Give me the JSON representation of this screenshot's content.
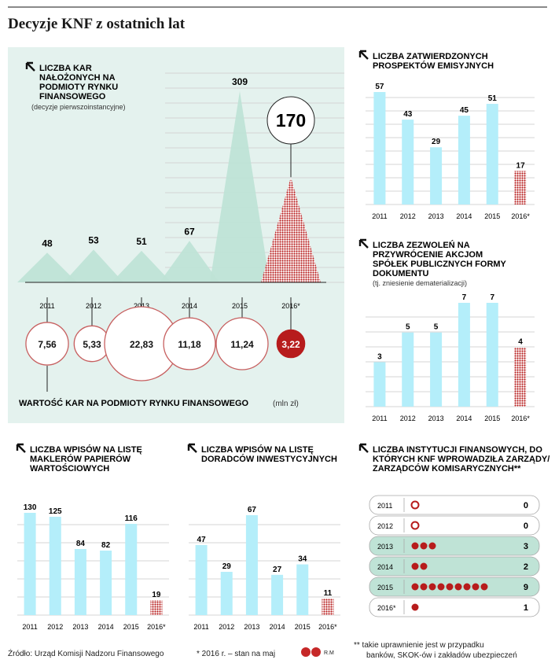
{
  "title": "Decyzje KNF z ostatnich lat",
  "colors": {
    "teal": "#bfe3d6",
    "cyan": "#b4eefa",
    "red": "#b71c1c",
    "panel": "#e4f2ee"
  },
  "chart_data": [
    {
      "id": "kary",
      "type": "area",
      "title": "LICZBA KAR NAŁOŻONYCH NA PODMIOTY RYNKU FINANSOWEGO",
      "subtitle": "(decyzje pierwszoinstancyjne)",
      "categories": [
        "2011",
        "2012",
        "2013",
        "2014",
        "2015",
        "2016*"
      ],
      "values": [
        48,
        53,
        51,
        67,
        309,
        170
      ],
      "value_labels": [
        "48",
        "53",
        "51",
        "67",
        "309",
        "170"
      ]
    },
    {
      "id": "wartosc",
      "type": "scatter",
      "title": "WARTOŚĆ KAR NA PODMIOTY RYNKU FINANSOWEGO",
      "unit": "(mln zł)",
      "categories": [
        "2011",
        "2012",
        "2013",
        "2014",
        "2015",
        "2016*"
      ],
      "values": [
        7.56,
        5.33,
        22.83,
        11.18,
        11.24,
        3.22
      ],
      "value_labels": [
        "7,56",
        "5,33",
        "22,83",
        "11,18",
        "11,24",
        "3,22"
      ]
    },
    {
      "id": "prospekty",
      "type": "bar",
      "title": "LICZBA ZATWIERDZONYCH PROSPEKTÓW EMISYJNYCH",
      "categories": [
        "2011",
        "2012",
        "2013",
        "2014",
        "2015",
        "2016*"
      ],
      "values": [
        57,
        43,
        29,
        45,
        51,
        17
      ],
      "value_labels": [
        "57",
        "43",
        "29",
        "45",
        "51",
        "17"
      ]
    },
    {
      "id": "zezwolenia",
      "type": "bar",
      "title": "LICZBA ZEZWOLEŃ NA PRZYWRÓCENIE AKCJOM SPÓŁEK PUBLICZNYCH FORMY DOKUMENTU",
      "subtitle": "(tj. zniesienie dematerializacji)",
      "categories": [
        "2011",
        "2012",
        "2013",
        "2014",
        "2015",
        "2016*"
      ],
      "values": [
        3,
        5,
        5,
        7,
        7,
        4
      ],
      "value_labels": [
        "3",
        "5",
        "5",
        "7",
        "7",
        "4"
      ]
    },
    {
      "id": "maklerzy",
      "type": "bar",
      "title": "LICZBA WPISÓW NA LISTĘ MAKLERÓW PAPIERÓW WARTOŚCIOWYCH",
      "categories": [
        "2011",
        "2012",
        "2013",
        "2014",
        "2015",
        "2016*"
      ],
      "values": [
        130,
        125,
        84,
        82,
        116,
        19
      ],
      "value_labels": [
        "130",
        "125",
        "84",
        "82",
        "116",
        "19"
      ]
    },
    {
      "id": "doradcy",
      "type": "bar",
      "title": "LICZBA WPISÓW NA LISTĘ DORADCÓW INWESTYCYJNYCH",
      "categories": [
        "2011",
        "2012",
        "2013",
        "2014",
        "2015",
        "2016*"
      ],
      "values": [
        47,
        29,
        67,
        27,
        34,
        11
      ],
      "value_labels": [
        "47",
        "29",
        "67",
        "27",
        "34",
        "11"
      ]
    },
    {
      "id": "zarzady",
      "type": "table",
      "title": "LICZBA INSTYTUCJI FINANSOWYCH, DO KTÓRYCH KNF WPROWADZIŁA ZARZĄDY/ ZARZĄDCÓW KOMISARYCZNYCH**",
      "categories": [
        "2011",
        "2012",
        "2013",
        "2014",
        "2015",
        "2016*"
      ],
      "values": [
        0,
        0,
        3,
        2,
        9,
        1
      ],
      "value_labels": [
        "0",
        "0",
        "3",
        "2",
        "9",
        "1"
      ]
    }
  ],
  "footer": {
    "source": "Źródło: Urząd Komisji Nadzoru Finansowego",
    "note": "* 2016 r. – stan na maj",
    "note2_line1": "** takie uprawnienie jest w przypadku",
    "note2_line2": "banków, SKOK-ów i zakładów ubezpieczeń",
    "logo_text": "GP",
    "author": "R.M"
  }
}
